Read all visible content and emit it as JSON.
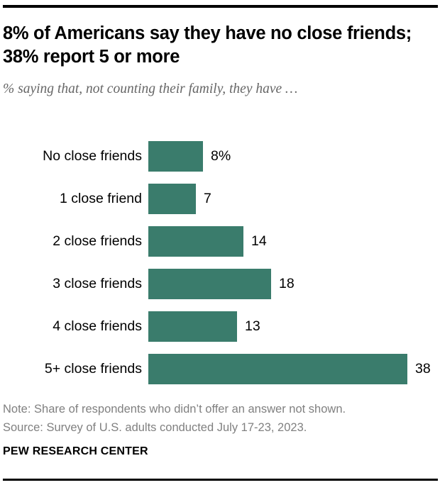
{
  "header": {
    "title": "8% of Americans say they have no close friends; 38% report 5 or more",
    "subtitle": "% saying that, not counting their family, they have …"
  },
  "chart_data": {
    "type": "bar",
    "orientation": "horizontal",
    "title": "8% of Americans say they have no close friends; 38% report 5 or more",
    "subtitle": "% saying that, not counting their family, they have …",
    "categories": [
      "No close friends",
      "1 close friend",
      "2 close friends",
      "3 close friends",
      "4 close friends",
      "5+ close friends"
    ],
    "values": [
      8,
      7,
      14,
      18,
      13,
      38
    ],
    "value_labels": [
      "8%",
      "7",
      "14",
      "18",
      "13",
      "38"
    ],
    "xlabel": "",
    "ylabel": "",
    "xlim": [
      0,
      40
    ],
    "grid": false,
    "legend": false
  },
  "footer": {
    "note": "Note: Share of respondents who didn’t offer an answer not shown.",
    "source": "Source: Survey of U.S. adults conducted July 17-23, 2023.",
    "brand": "PEW RESEARCH CENTER"
  },
  "colors": {
    "bar": "#3A7C6C",
    "title_text": "#000000",
    "subtitle_text": "#666666",
    "label_text": "#000000",
    "note_text": "#808080",
    "rule": "#000000"
  }
}
